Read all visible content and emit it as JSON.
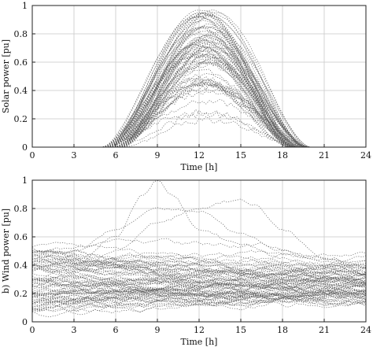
{
  "chart_data": [
    {
      "type": "line",
      "xlabel": "Time [h]",
      "ylabel": "Solar power [pu]",
      "xlim": [
        0,
        24
      ],
      "ylim": [
        0,
        1
      ],
      "xticks": [
        "0",
        "3",
        "6",
        "9",
        "12",
        "15",
        "18",
        "21",
        "24"
      ],
      "yticks": [
        "0",
        "0.2",
        "0.4",
        "0.6",
        "0.8",
        "1"
      ],
      "grid": true,
      "line_style": "dotted",
      "line_color": "#5a5a5a",
      "profile": {
        "sunrise_h": 5,
        "sunset_h": 20,
        "peak_h": 12.5,
        "peak_max": 0.98,
        "peak_min": 0.15,
        "scenario_count": 80
      }
    },
    {
      "type": "line",
      "xlabel": "Time [h]",
      "ylabel": "b) Wind power [pu]",
      "xlim": [
        0,
        24
      ],
      "ylim": [
        0,
        1
      ],
      "xticks": [
        "0",
        "3",
        "6",
        "9",
        "12",
        "15",
        "18",
        "21",
        "24"
      ],
      "yticks": [
        "0",
        "0.2",
        "0.4",
        "0.6",
        "0.8",
        "1"
      ],
      "grid": true,
      "line_style": "dotted",
      "line_color": "#5a5a5a",
      "profile": {
        "value_range": [
          0.02,
          1.0
        ],
        "scenario_count": 80,
        "highlight_scenarios": [
          {
            "x": [
              0,
              3,
              6,
              8,
              9,
              10,
              12,
              15,
              18,
              21,
              24
            ],
            "y": [
              0.3,
              0.4,
              0.6,
              0.9,
              1.0,
              0.9,
              0.65,
              0.55,
              0.45,
              0.35,
              0.3
            ]
          },
          {
            "x": [
              0,
              3,
              6,
              9,
              12,
              14,
              15,
              16,
              18,
              21,
              24
            ],
            "y": [
              0.25,
              0.35,
              0.5,
              0.7,
              0.8,
              0.85,
              0.86,
              0.82,
              0.65,
              0.45,
              0.35
            ]
          },
          {
            "x": [
              0,
              3,
              6,
              9,
              12,
              15,
              18,
              21,
              24
            ],
            "y": [
              0.45,
              0.5,
              0.65,
              0.8,
              0.78,
              0.62,
              0.5,
              0.42,
              0.38
            ]
          }
        ]
      }
    }
  ]
}
